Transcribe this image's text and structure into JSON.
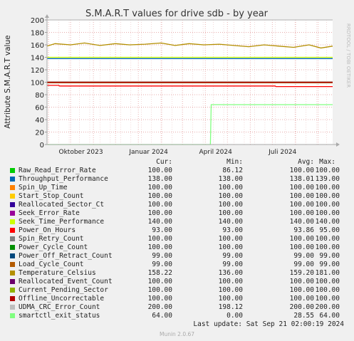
{
  "chart_data": {
    "type": "line",
    "title": "S.M.A.R.T values for drive sdb - by year",
    "ylabel": "Attribute S.M.A.R.T value",
    "side_text": "RRDTOOL / TOBI OETIKER",
    "ylim": [
      0,
      200
    ],
    "yticks": [
      0,
      20,
      40,
      60,
      80,
      100,
      120,
      140,
      160,
      180,
      200
    ],
    "xlim": [
      "2023-08-30",
      "2024-09-21"
    ],
    "xticks": [
      {
        "label": "Oktober 2023",
        "date": "2023-10-15"
      },
      {
        "label": "Januar 2024",
        "date": "2024-01-15"
      },
      {
        "label": "April 2024",
        "date": "2024-04-15"
      },
      {
        "label": "Juli 2024",
        "date": "2024-07-15"
      }
    ],
    "grid": true,
    "series": [
      {
        "name": "Raw_Read_Error_Rate",
        "color": "#00cc00",
        "points": [
          [
            "2023-08-30",
            100
          ],
          [
            "2024-09-21",
            100
          ]
        ]
      },
      {
        "name": "Throughput_Performance",
        "color": "#0066b3",
        "points": [
          [
            "2023-08-30",
            138
          ],
          [
            "2024-09-21",
            138
          ]
        ]
      },
      {
        "name": "Spin_Up_Time",
        "color": "#ff8000",
        "points": [
          [
            "2023-08-30",
            100
          ],
          [
            "2024-09-21",
            100
          ]
        ]
      },
      {
        "name": "Start_Stop_Count",
        "color": "#ffcc00",
        "points": [
          [
            "2023-08-30",
            100
          ],
          [
            "2024-09-21",
            100
          ]
        ]
      },
      {
        "name": "Reallocated_Sector_Ct",
        "color": "#330099",
        "points": [
          [
            "2023-08-30",
            100
          ],
          [
            "2024-09-21",
            100
          ]
        ]
      },
      {
        "name": "Seek_Error_Rate",
        "color": "#990099",
        "points": [
          [
            "2023-08-30",
            100
          ],
          [
            "2024-09-21",
            100
          ]
        ]
      },
      {
        "name": "Seek_Time_Performance",
        "color": "#ccff00",
        "points": [
          [
            "2023-08-30",
            140
          ],
          [
            "2024-09-21",
            140
          ]
        ]
      },
      {
        "name": "Power_On_Hours",
        "color": "#ff0000",
        "points": [
          [
            "2023-08-30",
            95
          ],
          [
            "2023-09-15",
            95
          ],
          [
            "2023-09-16",
            94
          ],
          [
            "2024-07-05",
            94
          ],
          [
            "2024-07-06",
            93
          ],
          [
            "2024-09-21",
            93
          ]
        ]
      },
      {
        "name": "Spin_Retry_Count",
        "color": "#808080",
        "points": [
          [
            "2023-08-30",
            100
          ],
          [
            "2024-09-21",
            100
          ]
        ]
      },
      {
        "name": "Power_Cycle_Count",
        "color": "#008f00",
        "points": [
          [
            "2023-08-30",
            100
          ],
          [
            "2024-09-21",
            100
          ]
        ]
      },
      {
        "name": "Power_Off_Retract_Count",
        "color": "#00487d",
        "points": [
          [
            "2023-08-30",
            99
          ],
          [
            "2024-09-21",
            99
          ]
        ]
      },
      {
        "name": "Load_Cycle_Count",
        "color": "#b35a00",
        "points": [
          [
            "2023-08-30",
            99
          ],
          [
            "2024-09-21",
            99
          ]
        ]
      },
      {
        "name": "Temperature_Celsius",
        "color": "#b38f00",
        "points": [
          [
            "2023-08-30",
            158
          ],
          [
            "2023-09-10",
            162
          ],
          [
            "2023-10-01",
            160
          ],
          [
            "2023-10-20",
            163
          ],
          [
            "2023-11-10",
            159
          ],
          [
            "2023-12-01",
            162
          ],
          [
            "2023-12-20",
            160
          ],
          [
            "2024-01-10",
            161
          ],
          [
            "2024-02-01",
            163
          ],
          [
            "2024-02-20",
            159
          ],
          [
            "2024-03-10",
            162
          ],
          [
            "2024-03-30",
            160
          ],
          [
            "2024-04-20",
            161
          ],
          [
            "2024-05-10",
            159
          ],
          [
            "2024-05-30",
            157
          ],
          [
            "2024-06-20",
            160
          ],
          [
            "2024-07-10",
            158
          ],
          [
            "2024-07-30",
            156
          ],
          [
            "2024-08-20",
            160
          ],
          [
            "2024-09-05",
            155
          ],
          [
            "2024-09-21",
            158
          ]
        ]
      },
      {
        "name": "Reallocated_Event_Count",
        "color": "#6b006b",
        "points": [
          [
            "2023-08-30",
            100
          ],
          [
            "2024-09-21",
            100
          ]
        ]
      },
      {
        "name": "Current_Pending_Sector",
        "color": "#8fb300",
        "points": [
          [
            "2023-08-30",
            100
          ],
          [
            "2024-09-21",
            100
          ]
        ]
      },
      {
        "name": "Offline_Uncorrectable",
        "color": "#b30000",
        "points": [
          [
            "2023-08-30",
            100
          ],
          [
            "2024-09-21",
            100
          ]
        ]
      },
      {
        "name": "UDMA_CRC_Error_Count",
        "color": "#bebebe",
        "points": [
          [
            "2023-08-30",
            200
          ],
          [
            "2024-09-21",
            200
          ]
        ]
      },
      {
        "name": "smartctl_exit_status",
        "color": "#80ff80",
        "points": [
          [
            "2023-08-30",
            0
          ],
          [
            "2024-04-08",
            0
          ],
          [
            "2024-04-09",
            64
          ],
          [
            "2024-09-21",
            64
          ]
        ]
      }
    ]
  },
  "legend": {
    "headers": {
      "cur": "Cur:",
      "min": "Min:",
      "avg": "Avg:",
      "max": "Max:"
    },
    "rows": [
      {
        "name": "Raw_Read_Error_Rate",
        "color": "#00cc00",
        "cur": "100.00",
        "min": "86.12",
        "avg": "100.00",
        "max": "100.00"
      },
      {
        "name": "Throughput_Performance",
        "color": "#0066b3",
        "cur": "138.00",
        "min": "138.00",
        "avg": "138.01",
        "max": "139.00"
      },
      {
        "name": "Spin_Up_Time",
        "color": "#ff8000",
        "cur": "100.00",
        "min": "100.00",
        "avg": "100.00",
        "max": "100.00"
      },
      {
        "name": "Start_Stop_Count",
        "color": "#ffcc00",
        "cur": "100.00",
        "min": "100.00",
        "avg": "100.00",
        "max": "100.00"
      },
      {
        "name": "Reallocated_Sector_Ct",
        "color": "#330099",
        "cur": "100.00",
        "min": "100.00",
        "avg": "100.00",
        "max": "100.00"
      },
      {
        "name": "Seek_Error_Rate",
        "color": "#990099",
        "cur": "100.00",
        "min": "100.00",
        "avg": "100.00",
        "max": "100.00"
      },
      {
        "name": "Seek_Time_Performance",
        "color": "#ccff00",
        "cur": "140.00",
        "min": "140.00",
        "avg": "140.00",
        "max": "140.00"
      },
      {
        "name": "Power_On_Hours",
        "color": "#ff0000",
        "cur": "93.00",
        "min": "93.00",
        "avg": "93.86",
        "max": "95.00"
      },
      {
        "name": "Spin_Retry_Count",
        "color": "#808080",
        "cur": "100.00",
        "min": "100.00",
        "avg": "100.00",
        "max": "100.00"
      },
      {
        "name": "Power_Cycle_Count",
        "color": "#008f00",
        "cur": "100.00",
        "min": "100.00",
        "avg": "100.00",
        "max": "100.00"
      },
      {
        "name": "Power_Off_Retract_Count",
        "color": "#00487d",
        "cur": "99.00",
        "min": "99.00",
        "avg": "99.00",
        "max": "99.00"
      },
      {
        "name": "Load_Cycle_Count",
        "color": "#b35a00",
        "cur": "99.00",
        "min": "99.00",
        "avg": "99.00",
        "max": "99.00"
      },
      {
        "name": "Temperature_Celsius",
        "color": "#b38f00",
        "cur": "158.22",
        "min": "136.00",
        "avg": "159.20",
        "max": "181.00"
      },
      {
        "name": "Reallocated_Event_Count",
        "color": "#6b006b",
        "cur": "100.00",
        "min": "100.00",
        "avg": "100.00",
        "max": "100.00"
      },
      {
        "name": "Current_Pending_Sector",
        "color": "#8fb300",
        "cur": "100.00",
        "min": "100.00",
        "avg": "100.00",
        "max": "100.00"
      },
      {
        "name": "Offline_Uncorrectable",
        "color": "#b30000",
        "cur": "100.00",
        "min": "100.00",
        "avg": "100.00",
        "max": "100.00"
      },
      {
        "name": "UDMA_CRC_Error_Count",
        "color": "#bebebe",
        "cur": "200.00",
        "min": "198.12",
        "avg": "200.00",
        "max": "200.00"
      },
      {
        "name": "smartctl_exit_status",
        "color": "#80ff80",
        "cur": "64.00",
        "min": "0.00",
        "avg": "28.55",
        "max": "64.00"
      }
    ]
  },
  "footer": {
    "last_update": "Last update: Sat Sep 21 02:00:19 2024",
    "generator": "Munin 2.0.67"
  }
}
